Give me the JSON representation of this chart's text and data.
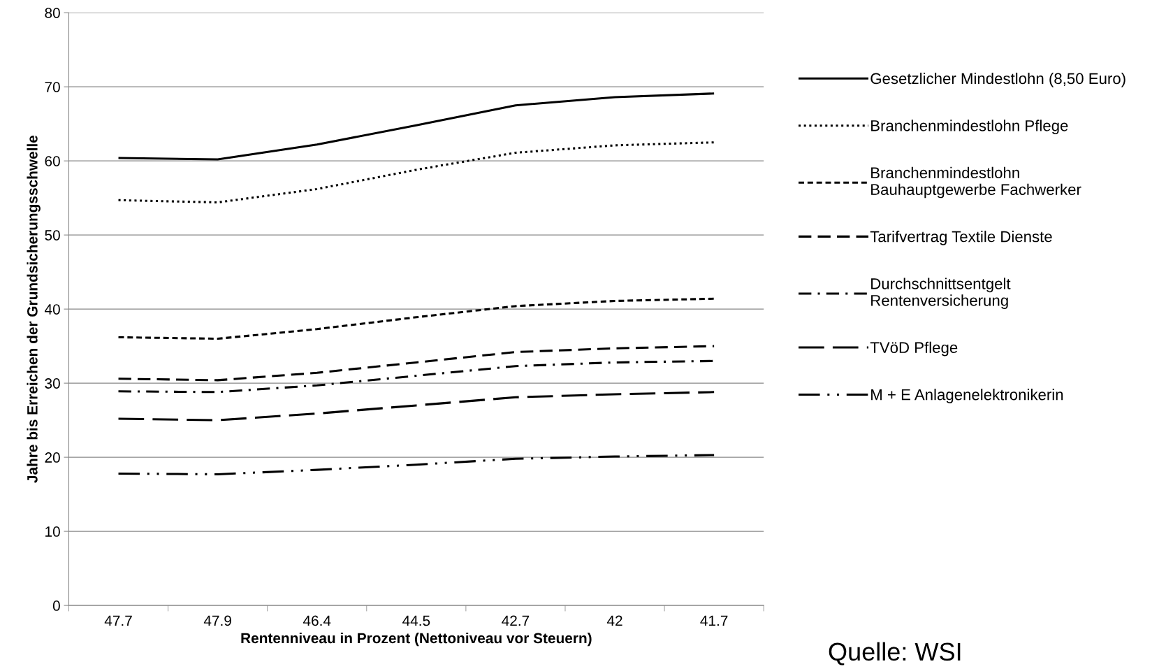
{
  "chart_data": {
    "type": "line",
    "xlabel": "Rentenniveau in Prozent (Nettoniveau vor Steuern)",
    "ylabel": "Jahre bis Erreichen der Grundsicherungsschwelle",
    "categories": [
      "47.7",
      "47.9",
      "46.4",
      "44.5",
      "42.7",
      "42",
      "41.7"
    ],
    "ylim": [
      0,
      80
    ],
    "yticks": [
      0,
      10,
      20,
      30,
      40,
      50,
      60,
      70,
      80
    ],
    "grid": "y",
    "legend": "right",
    "marker": "none",
    "series": [
      {
        "name": "Gesetzlicher Mindestlohn (8,50 Euro)",
        "color": "#000000",
        "line_style": "solid",
        "values": [
          60.4,
          60.2,
          62.2,
          64.8,
          67.5,
          68.6,
          69.1
        ]
      },
      {
        "name": "Branchenmindestlohn Pflege",
        "color": "#000000",
        "line_style": "dotted",
        "values": [
          54.7,
          54.4,
          56.2,
          58.8,
          61.1,
          62.1,
          62.5
        ]
      },
      {
        "name": "Branchenmindestlohn\nBauhauptgewerbe Fachwerker",
        "color": "#000000",
        "line_style": "shortdash",
        "values": [
          36.2,
          36.0,
          37.3,
          38.9,
          40.4,
          41.1,
          41.4
        ]
      },
      {
        "name": "Tarifvertrag Textile Dienste",
        "color": "#000000",
        "line_style": "dashed",
        "values": [
          30.6,
          30.4,
          31.4,
          32.8,
          34.2,
          34.7,
          35.0
        ]
      },
      {
        "name": "Durchschnittsentgelt\nRentenversicherung",
        "color": "#000000",
        "line_style": "dashdot",
        "values": [
          28.9,
          28.8,
          29.7,
          31.0,
          32.3,
          32.8,
          33.0
        ]
      },
      {
        "name": "TVöD Pflege",
        "color": "#000000",
        "line_style": "longdash",
        "values": [
          25.2,
          25.0,
          25.9,
          27.0,
          28.1,
          28.5,
          28.8
        ]
      },
      {
        "name": "M + E Anlagenelektronikerin",
        "color": "#000000",
        "line_style": "longdashdotdot",
        "values": [
          17.8,
          17.7,
          18.3,
          19.0,
          19.8,
          20.1,
          20.3
        ]
      }
    ],
    "annotations": [
      "Quelle: WSI"
    ]
  }
}
